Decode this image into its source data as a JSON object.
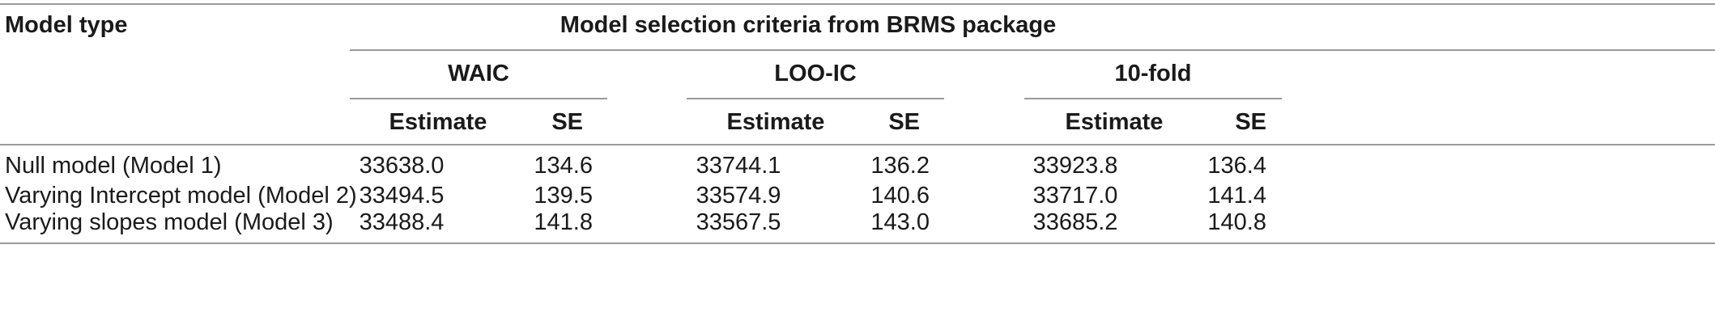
{
  "table": {
    "header": {
      "model_type": "Model type",
      "criteria_group": "Model selection criteria from BRMS package",
      "criteria": [
        "WAIC",
        "LOO-IC",
        "10-fold"
      ],
      "subcols": [
        "Estimate",
        "SE"
      ]
    },
    "rows": [
      {
        "model": "Null model (Model 1)",
        "values": [
          "33638.0",
          "134.6",
          "33744.1",
          "136.2",
          "33923.8",
          "136.4"
        ]
      },
      {
        "model": "Varying Intercept model (Model 2)",
        "values": [
          "33494.5",
          "139.5",
          "33574.9",
          "140.6",
          "33717.0",
          "141.4"
        ]
      },
      {
        "model": "Varying slopes model (Model 3)",
        "values": [
          "33488.4",
          "141.8",
          "33567.5",
          "143.0",
          "33685.2",
          "140.8"
        ]
      }
    ]
  }
}
